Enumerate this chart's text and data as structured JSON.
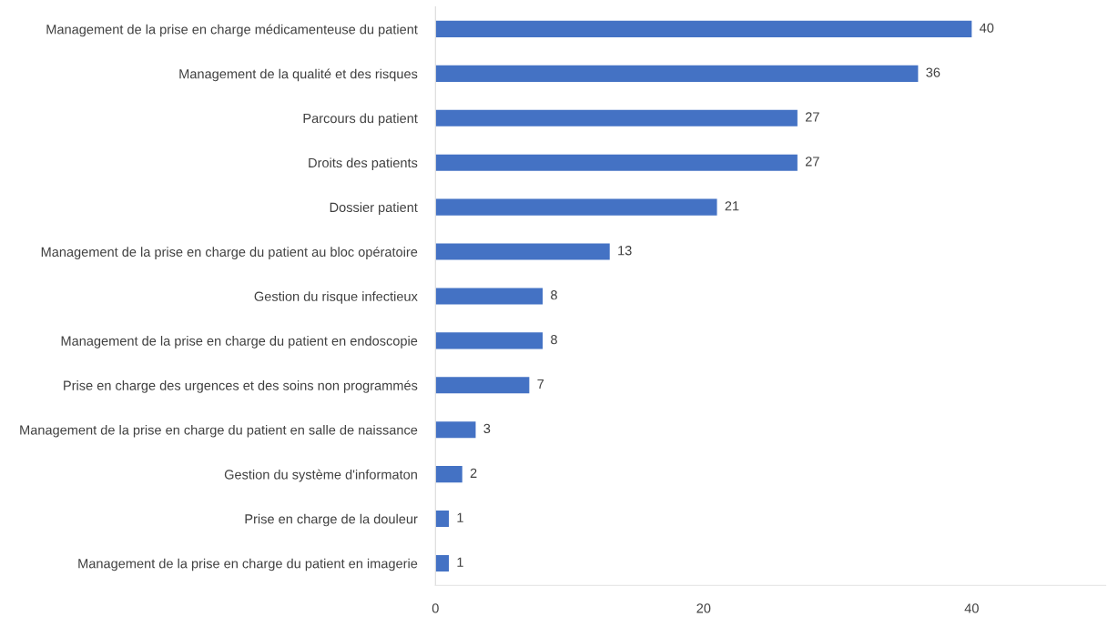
{
  "chart_data": {
    "type": "bar",
    "orientation": "horizontal",
    "categories": [
      "Management de la prise en charge médicamenteuse du patient",
      "Management de la qualité et des risques",
      "Parcours du patient",
      "Droits des patients",
      "Dossier patient",
      "Management de la prise en charge du patient au bloc opératoire",
      "Gestion du risque infectieux",
      "Management de la prise en charge du patient en endoscopie",
      "Prise en charge des urgences et des soins non programmés",
      "Management de la prise en charge du patient en salle de naissance",
      "Gestion du système d'informaton",
      "Prise en charge de la douleur",
      "Management de la prise en charge du patient en imagerie"
    ],
    "values": [
      40,
      36,
      27,
      27,
      21,
      13,
      8,
      8,
      7,
      3,
      2,
      1,
      1
    ],
    "color": "#4472c4",
    "xlim": [
      0,
      50
    ],
    "xticks": [
      0,
      20,
      40
    ],
    "data_labels": true,
    "grid": false,
    "legend": false
  }
}
